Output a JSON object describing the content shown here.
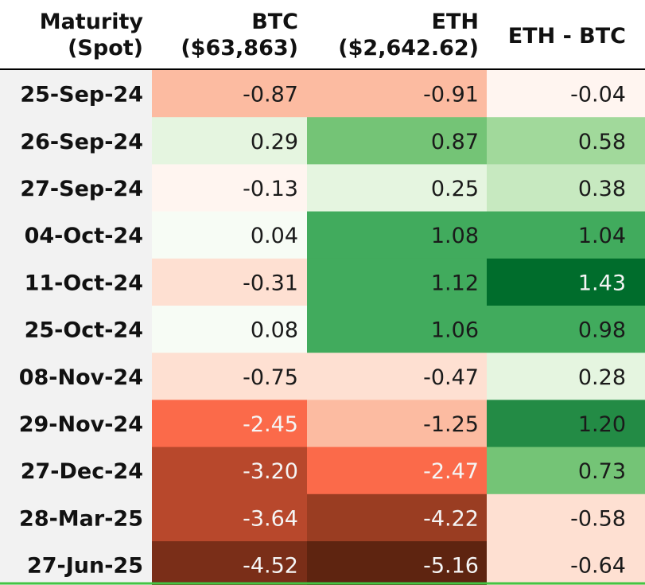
{
  "chart_data": {
    "type": "heatmap",
    "columns": [
      {
        "key": "maturity",
        "lines": [
          "Maturity",
          "(Spot)"
        ]
      },
      {
        "key": "btc",
        "lines": [
          "BTC",
          "($63,863)"
        ]
      },
      {
        "key": "eth",
        "lines": [
          "ETH",
          "($2,642.62)"
        ]
      },
      {
        "key": "diff",
        "lines": [
          "ETH - BTC"
        ]
      }
    ],
    "rows": [
      {
        "maturity": "25-Sep-24",
        "btc": "-0.87",
        "eth": "-0.91",
        "diff": "-0.04"
      },
      {
        "maturity": "26-Sep-24",
        "btc": "0.29",
        "eth": "0.87",
        "diff": "0.58"
      },
      {
        "maturity": "27-Sep-24",
        "btc": "-0.13",
        "eth": "0.25",
        "diff": "0.38"
      },
      {
        "maturity": "04-Oct-24",
        "btc": "0.04",
        "eth": "1.08",
        "diff": "1.04"
      },
      {
        "maturity": "11-Oct-24",
        "btc": "-0.31",
        "eth": "1.12",
        "diff": "1.43"
      },
      {
        "maturity": "25-Oct-24",
        "btc": "0.08",
        "eth": "1.06",
        "diff": "0.98"
      },
      {
        "maturity": "08-Nov-24",
        "btc": "-0.75",
        "eth": "-0.47",
        "diff": "0.28"
      },
      {
        "maturity": "29-Nov-24",
        "btc": "-2.45",
        "eth": "-1.25",
        "diff": "1.20"
      },
      {
        "maturity": "27-Dec-24",
        "btc": "-3.20",
        "eth": "-2.47",
        "diff": "0.73"
      },
      {
        "maturity": "28-Mar-25",
        "btc": "-3.64",
        "eth": "-4.22",
        "diff": "-0.58"
      },
      {
        "maturity": "27-Jun-25",
        "btc": "-4.52",
        "eth": "-5.16",
        "diff": "-0.64"
      }
    ],
    "colors": {
      "positive": [
        "#f7fcf5",
        "#e5f5e0",
        "#c7e9c0",
        "#a1d99b",
        "#74c476",
        "#41ab5d",
        "#238b45",
        "#006d2c"
      ],
      "negative": [
        "#fff5f0",
        "#fee0d2",
        "#fcbba1",
        "#fc9272",
        "#fb6a4a",
        "#de5a3a",
        "#b8482c",
        "#9a3d22",
        "#7a2e18",
        "#5e2410"
      ],
      "maturity_bg": "#f2f2f2",
      "header_rule": "#000000",
      "bottom_rule": "#43c443"
    }
  }
}
